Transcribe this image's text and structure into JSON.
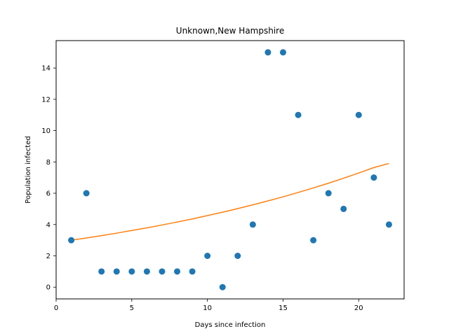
{
  "chart_data": {
    "type": "scatter",
    "title": "Unknown,New Hampshire",
    "xlabel": "Days since infection",
    "ylabel": "Population infected",
    "xlim": [
      0,
      23
    ],
    "ylim": [
      -0.75,
      15.75
    ],
    "xticks": [
      0,
      5,
      10,
      15,
      20
    ],
    "yticks": [
      0,
      2,
      4,
      6,
      8,
      10,
      12,
      14
    ],
    "grid": false,
    "series": [
      {
        "kind": "scatter",
        "color": "#1f77b4",
        "x": [
          1,
          2,
          3,
          4,
          5,
          6,
          7,
          8,
          9,
          10,
          11,
          12,
          13,
          14,
          15,
          16,
          17,
          18,
          19,
          20,
          21,
          22
        ],
        "y": [
          3,
          6,
          1,
          1,
          1,
          1,
          1,
          1,
          1,
          2,
          0,
          2,
          4,
          15,
          15,
          11,
          3,
          6,
          5,
          11,
          7,
          4
        ]
      },
      {
        "kind": "line",
        "color": "#ff7f0e",
        "x": [
          1,
          2,
          3,
          4,
          5,
          6,
          7,
          8,
          9,
          10,
          11,
          12,
          13,
          14,
          15,
          16,
          17,
          18,
          19,
          20,
          21,
          22
        ],
        "y": [
          3.0,
          3.14,
          3.29,
          3.45,
          3.62,
          3.79,
          3.97,
          4.16,
          4.36,
          4.57,
          4.79,
          5.02,
          5.26,
          5.51,
          5.77,
          6.05,
          6.34,
          6.64,
          6.96,
          7.29,
          7.64,
          7.9
        ]
      }
    ]
  }
}
